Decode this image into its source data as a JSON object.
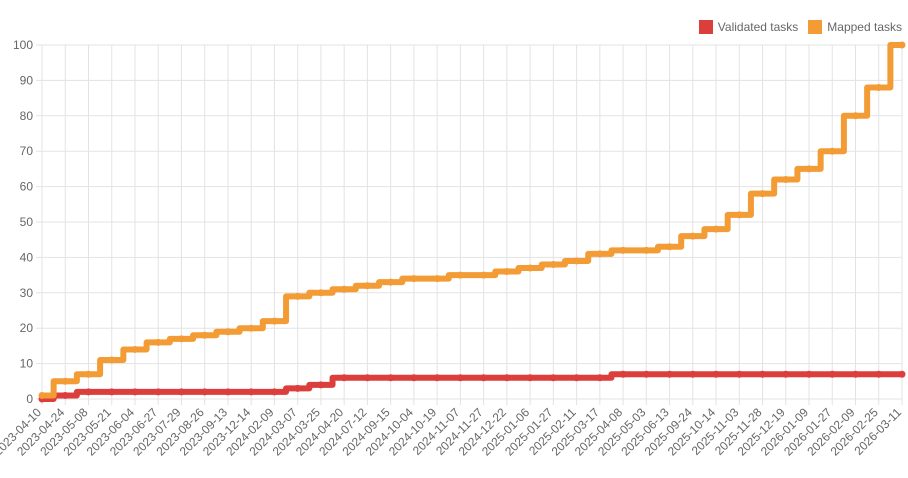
{
  "chart_data": {
    "type": "line",
    "title": "",
    "xlabel": "",
    "ylabel": "",
    "ylim": [
      0,
      100
    ],
    "y_ticks": [
      0,
      10,
      20,
      30,
      40,
      50,
      60,
      70,
      80,
      90,
      100
    ],
    "grid": true,
    "legend_position": "top-right",
    "x": [
      "2023-04-10",
      "2023-04-24",
      "2023-05-08",
      "2023-05-21",
      "2023-06-04",
      "2023-06-27",
      "2023-07-29",
      "2023-08-26",
      "2023-09-13",
      "2023-12-14",
      "2024-02-09",
      "2024-03-07",
      "2024-03-25",
      "2024-04-20",
      "2024-07-12",
      "2024-09-15",
      "2024-10-04",
      "2024-10-19",
      "2024-11-07",
      "2024-11-27",
      "2024-12-22",
      "2025-01-06",
      "2025-01-27",
      "2025-02-11",
      "2025-03-17",
      "2025-04-08",
      "2025-05-03",
      "2025-06-13",
      "2025-09-24",
      "2025-10-14",
      "2025-11-03",
      "2025-11-28",
      "2025-12-19",
      "2026-01-09",
      "2026-01-27",
      "2026-02-09",
      "2026-02-25",
      "2026-03-11"
    ],
    "series": [
      {
        "name": "Validated tasks",
        "color": "#dc3e3b",
        "values": [
          0,
          1,
          2,
          2,
          2,
          2,
          2,
          2,
          2,
          2,
          2,
          3,
          4,
          6,
          6,
          6,
          6,
          6,
          6,
          6,
          6,
          6,
          6,
          6,
          6,
          7,
          7,
          7,
          7,
          7,
          7,
          7,
          7,
          7,
          7,
          7,
          7,
          7
        ]
      },
      {
        "name": "Mapped tasks",
        "color": "#f39c36",
        "values": [
          1,
          5,
          7,
          11,
          14,
          16,
          17,
          18,
          19,
          20,
          22,
          29,
          30,
          31,
          32,
          33,
          34,
          34,
          35,
          35,
          36,
          37,
          38,
          39,
          41,
          42,
          42,
          43,
          46,
          48,
          52,
          58,
          62,
          65,
          70,
          80,
          88,
          100
        ]
      }
    ]
  }
}
